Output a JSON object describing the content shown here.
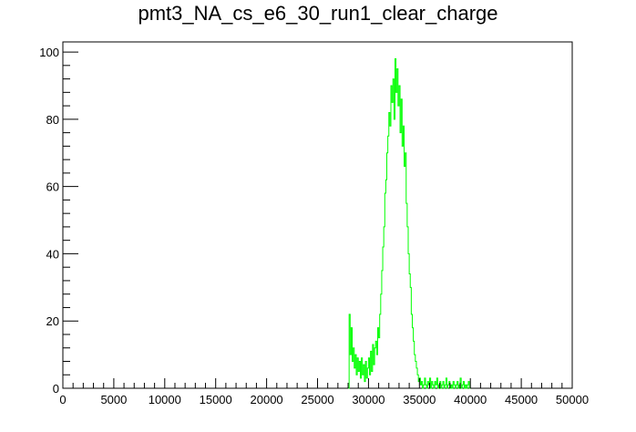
{
  "chart_data": {
    "type": "histogram",
    "title": "pmt3_NA_cs_e6_30_run1_clear_charge",
    "xlabel": "",
    "ylabel": "",
    "xlim": [
      0,
      50000
    ],
    "ylim": [
      0,
      103
    ],
    "line_color": "#00ff00",
    "x_ticks": [
      {
        "value": 0,
        "label": "0"
      },
      {
        "value": 5000,
        "label": "5000"
      },
      {
        "value": 10000,
        "label": "10000"
      },
      {
        "value": 15000,
        "label": "15000"
      },
      {
        "value": 20000,
        "label": "20000"
      },
      {
        "value": 25000,
        "label": "25000"
      },
      {
        "value": 30000,
        "label": "30000"
      },
      {
        "value": 35000,
        "label": "35000"
      },
      {
        "value": 40000,
        "label": "40000"
      },
      {
        "value": 45000,
        "label": "45000"
      },
      {
        "value": 50000,
        "label": "50000"
      }
    ],
    "y_ticks": [
      {
        "value": 0,
        "label": "0"
      },
      {
        "value": 20,
        "label": "20"
      },
      {
        "value": 40,
        "label": "40"
      },
      {
        "value": 60,
        "label": "60"
      },
      {
        "value": 80,
        "label": "80"
      },
      {
        "value": 100,
        "label": "100"
      }
    ],
    "series": [
      {
        "name": "clear_charge",
        "points": [
          [
            28000,
            0
          ],
          [
            28100,
            22
          ],
          [
            28200,
            10
          ],
          [
            28300,
            18
          ],
          [
            28400,
            8
          ],
          [
            28500,
            12
          ],
          [
            28600,
            6
          ],
          [
            28700,
            10
          ],
          [
            28800,
            4
          ],
          [
            28900,
            9
          ],
          [
            29000,
            5
          ],
          [
            29100,
            8
          ],
          [
            29200,
            3
          ],
          [
            29300,
            9
          ],
          [
            29400,
            4
          ],
          [
            29500,
            7
          ],
          [
            29600,
            2
          ],
          [
            29700,
            8
          ],
          [
            29800,
            3
          ],
          [
            29900,
            6
          ],
          [
            30000,
            9
          ],
          [
            30100,
            4
          ],
          [
            30200,
            11
          ],
          [
            30300,
            5
          ],
          [
            30400,
            13
          ],
          [
            30500,
            7
          ],
          [
            30600,
            12
          ],
          [
            30700,
            14
          ],
          [
            30800,
            10
          ],
          [
            30900,
            18
          ],
          [
            31000,
            15
          ],
          [
            31100,
            22
          ],
          [
            31200,
            28
          ],
          [
            31300,
            35
          ],
          [
            31400,
            42
          ],
          [
            31500,
            48
          ],
          [
            31600,
            58
          ],
          [
            31700,
            62
          ],
          [
            31800,
            70
          ],
          [
            31900,
            75
          ],
          [
            32000,
            82
          ],
          [
            32100,
            78
          ],
          [
            32200,
            90
          ],
          [
            32300,
            85
          ],
          [
            32400,
            92
          ],
          [
            32500,
            80
          ],
          [
            32600,
            98
          ],
          [
            32700,
            88
          ],
          [
            32800,
            95
          ],
          [
            32900,
            84
          ],
          [
            33000,
            90
          ],
          [
            33100,
            76
          ],
          [
            33200,
            86
          ],
          [
            33300,
            72
          ],
          [
            33400,
            78
          ],
          [
            33500,
            66
          ],
          [
            33600,
            70
          ],
          [
            33700,
            55
          ],
          [
            33800,
            48
          ],
          [
            33900,
            40
          ],
          [
            34000,
            34
          ],
          [
            34100,
            30
          ],
          [
            34200,
            22
          ],
          [
            34300,
            18
          ],
          [
            34400,
            14
          ],
          [
            34500,
            10
          ],
          [
            34600,
            8
          ],
          [
            34700,
            6
          ],
          [
            34800,
            4
          ],
          [
            34900,
            2
          ],
          [
            35000,
            3
          ],
          [
            35100,
            1
          ],
          [
            35200,
            2
          ],
          [
            35300,
            0
          ],
          [
            35400,
            1
          ],
          [
            35500,
            3
          ],
          [
            35600,
            1
          ],
          [
            35700,
            0
          ],
          [
            35800,
            2
          ],
          [
            35900,
            1
          ],
          [
            36000,
            3
          ],
          [
            36100,
            0
          ],
          [
            36200,
            2
          ],
          [
            36300,
            1
          ],
          [
            36400,
            0
          ],
          [
            36500,
            2
          ],
          [
            36600,
            1
          ],
          [
            36700,
            3
          ],
          [
            36800,
            0
          ],
          [
            36900,
            1
          ],
          [
            37000,
            2
          ],
          [
            37100,
            0
          ],
          [
            37200,
            1
          ],
          [
            37300,
            2
          ],
          [
            37400,
            0
          ],
          [
            37500,
            1
          ],
          [
            37600,
            3
          ],
          [
            37700,
            0
          ],
          [
            37800,
            1
          ],
          [
            37900,
            2
          ],
          [
            38000,
            0
          ],
          [
            38100,
            1
          ],
          [
            38200,
            0
          ],
          [
            38300,
            2
          ],
          [
            38400,
            1
          ],
          [
            38500,
            0
          ],
          [
            38600,
            1
          ],
          [
            38700,
            2
          ],
          [
            38800,
            0
          ],
          [
            38900,
            1
          ],
          [
            39000,
            3
          ],
          [
            39100,
            0
          ],
          [
            39200,
            1
          ],
          [
            39300,
            2
          ],
          [
            39400,
            0
          ],
          [
            39500,
            1
          ],
          [
            39600,
            0
          ],
          [
            39700,
            1
          ],
          [
            39800,
            2
          ],
          [
            39900,
            0
          ],
          [
            40000,
            0
          ]
        ]
      }
    ]
  }
}
